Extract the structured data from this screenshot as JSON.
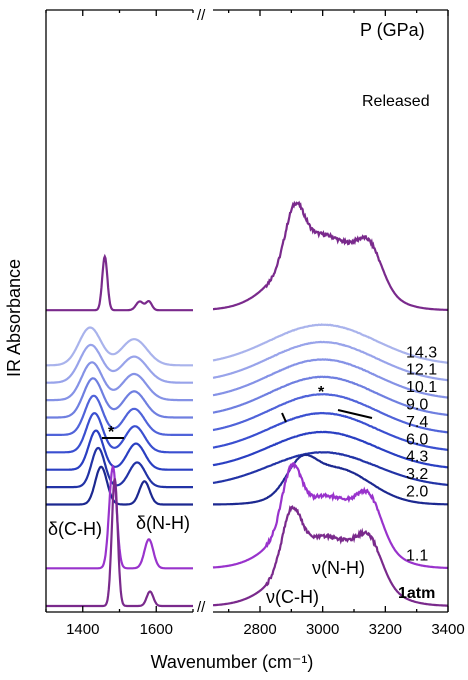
{
  "chart_data": {
    "type": "line",
    "title": "",
    "xlabel": "Wavenumber (cm⁻¹)",
    "ylabel": "IR Absorbance",
    "header_label": "P (GPa)",
    "axis_break_marker": "//",
    "x_segments": [
      [
        1300,
        1700
      ],
      [
        2650,
        3400
      ]
    ],
    "x_ticks": [
      1400,
      1600,
      2800,
      3000,
      3200,
      3400
    ],
    "y_ticks_visible": false,
    "grid": false,
    "colors": {
      "Released": "#7a2a8c",
      "14.3": "#a9b3ec",
      "12.1": "#98a3ea",
      "10.1": "#8592e6",
      "9.0": "#6f7fe0",
      "7.4": "#5063d9",
      "6.0": "#3a4fd0",
      "4.3": "#2a3fc2",
      "3.2": "#2233a6",
      "2.0": "#1c2890",
      "1.1": "#9933cc",
      "1atm": "#7a2a8c"
    },
    "series": [
      {
        "name": "Released",
        "offset": 10.2,
        "peaks": [
          [
            1460,
            7,
            1.85
          ],
          [
            1555,
            10,
            0.3
          ],
          [
            1580,
            8,
            0.3
          ],
          [
            2910,
            30,
            1.7
          ],
          [
            3000,
            120,
            2.6
          ],
          [
            3150,
            40,
            1.2
          ]
        ]
      },
      {
        "name": "14.3",
        "offset": 8.3,
        "peaks": [
          [
            1420,
            30,
            1.3
          ],
          [
            1540,
            35,
            0.9
          ],
          [
            3000,
            170,
            1.4
          ]
        ]
      },
      {
        "name": "12.1",
        "offset": 7.7,
        "peaks": [
          [
            1422,
            30,
            1.3
          ],
          [
            1540,
            35,
            0.9
          ],
          [
            3000,
            170,
            1.4
          ]
        ]
      },
      {
        "name": "10.1",
        "offset": 7.1,
        "peaks": [
          [
            1425,
            28,
            1.3
          ],
          [
            1540,
            33,
            0.9
          ],
          [
            3000,
            170,
            1.4
          ]
        ]
      },
      {
        "name": "9.0",
        "offset": 6.5,
        "peaks": [
          [
            1428,
            26,
            1.35
          ],
          [
            1540,
            30,
            0.9
          ],
          [
            3000,
            170,
            1.4
          ]
        ]
      },
      {
        "name": "7.4",
        "offset": 5.9,
        "peaks": [
          [
            1430,
            24,
            1.35
          ],
          [
            1540,
            28,
            0.9
          ],
          [
            3000,
            170,
            1.4
          ]
        ]
      },
      {
        "name": "6.0",
        "offset": 5.3,
        "peaks": [
          [
            1432,
            22,
            1.35
          ],
          [
            1542,
            26,
            0.9
          ],
          [
            3000,
            170,
            1.35
          ]
        ]
      },
      {
        "name": "4.3",
        "offset": 4.7,
        "peaks": [
          [
            1436,
            20,
            1.35
          ],
          [
            1545,
            24,
            0.9
          ],
          [
            3000,
            170,
            1.3
          ]
        ]
      },
      {
        "name": "3.2",
        "offset": 4.1,
        "peaks": [
          [
            1442,
            18,
            1.35
          ],
          [
            1548,
            22,
            0.85
          ],
          [
            3000,
            170,
            1.2
          ]
        ]
      },
      {
        "name": "2.0",
        "offset": 3.5,
        "peaks": [
          [
            1450,
            16,
            1.3
          ],
          [
            1568,
            14,
            0.8
          ],
          [
            2930,
            45,
            0.9
          ],
          [
            3040,
            110,
            1.25
          ]
        ]
      },
      {
        "name": "1.1",
        "offset": 1.3,
        "peaks": [
          [
            1482,
            10,
            3.5
          ],
          [
            1580,
            12,
            1.0
          ],
          [
            2900,
            30,
            1.9
          ],
          [
            3010,
            120,
            2.5
          ],
          [
            3150,
            40,
            1.3
          ]
        ]
      },
      {
        "name": "1atm",
        "offset": 0.0,
        "peaks": [
          [
            1487,
            8,
            4.4
          ],
          [
            1583,
            9,
            0.5
          ],
          [
            2900,
            30,
            1.8
          ],
          [
            3010,
            120,
            2.4
          ],
          [
            3150,
            40,
            1.2
          ]
        ]
      }
    ],
    "annotations": {
      "delta_CH": "δ(C-H)",
      "delta_NH": "δ(N-H)",
      "nu_CH": "ν(C-H)",
      "nu_NH": "ν(N-H)",
      "star_1": "*",
      "star_2": "*"
    }
  }
}
